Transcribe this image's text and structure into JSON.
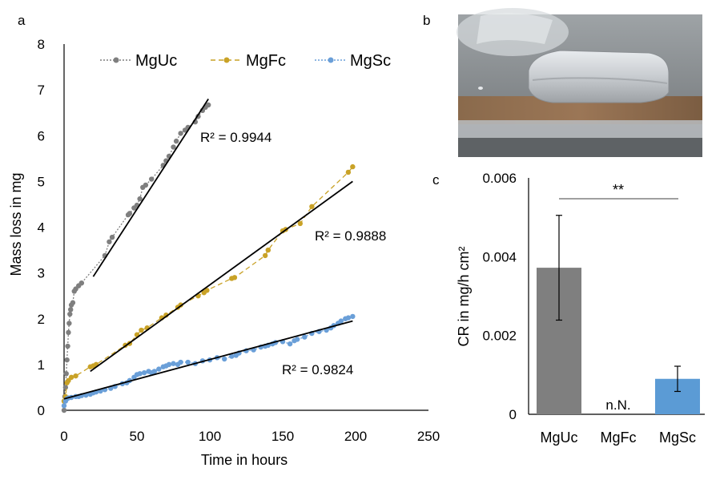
{
  "panels": {
    "a": "a",
    "b": "b",
    "c": "c"
  },
  "chart_data": [
    {
      "id": "a",
      "type": "scatter",
      "xlabel": "Time in hours",
      "ylabel": "Mass loss in mg",
      "xlim": [
        0,
        250
      ],
      "ylim": [
        0,
        8
      ],
      "xticks": [
        0,
        50,
        100,
        150,
        200,
        250
      ],
      "yticks": [
        0,
        1,
        2,
        3,
        4,
        5,
        6,
        7,
        8
      ],
      "grid": false,
      "legend_position": "top",
      "series": [
        {
          "name": "MgUc",
          "color": "#7f7f7f",
          "line_style": "dotted",
          "x": [
            0,
            0.5,
            1,
            1.5,
            2,
            2.5,
            3,
            3.5,
            4,
            4.5,
            5,
            6,
            7,
            8,
            10,
            12,
            28,
            31,
            33,
            44,
            45,
            48,
            50,
            52,
            54,
            56,
            60,
            68,
            70,
            72,
            75,
            77,
            80,
            83,
            85,
            90,
            92,
            95,
            97,
            99
          ],
          "y": [
            0.0,
            0.3,
            0.5,
            0.8,
            1.1,
            1.4,
            1.7,
            1.9,
            2.1,
            2.2,
            2.3,
            2.35,
            2.6,
            2.65,
            2.72,
            2.78,
            3.38,
            3.68,
            3.78,
            4.27,
            4.3,
            4.42,
            4.48,
            4.62,
            4.87,
            4.92,
            5.05,
            5.35,
            5.45,
            5.55,
            5.75,
            5.88,
            6.05,
            6.12,
            6.18,
            6.3,
            6.42,
            6.55,
            6.62,
            6.67
          ],
          "trend": {
            "x": [
              20,
              99
            ],
            "y": [
              2.92,
              6.8
            ]
          },
          "r2_label": "R² = 0.9944"
        },
        {
          "name": "MgFc",
          "color": "#c9a227",
          "line_style": "dashed",
          "x": [
            0,
            1,
            2,
            3,
            5,
            8,
            18,
            20,
            22,
            42,
            45,
            50,
            53,
            57,
            67,
            70,
            78,
            80,
            92,
            96,
            98,
            115,
            117,
            138,
            140,
            150,
            152,
            162,
            170,
            195,
            198
          ],
          "y": [
            0.2,
            0.3,
            0.6,
            0.65,
            0.72,
            0.75,
            0.95,
            0.97,
            1.0,
            1.42,
            1.46,
            1.65,
            1.75,
            1.8,
            2.02,
            2.08,
            2.25,
            2.3,
            2.5,
            2.57,
            2.62,
            2.88,
            2.9,
            3.38,
            3.5,
            3.92,
            3.95,
            4.08,
            4.45,
            5.2,
            5.32
          ],
          "trend": {
            "x": [
              18,
              198
            ],
            "y": [
              0.85,
              5.0
            ]
          },
          "r2_label": "R² = 0.9888"
        },
        {
          "name": "MgSc",
          "color": "#6a9fd8",
          "line_style": "dotted",
          "x": [
            0,
            1,
            2,
            3,
            5,
            8,
            10,
            12,
            15,
            18,
            20,
            22,
            25,
            28,
            32,
            35,
            40,
            43,
            45,
            48,
            50,
            52,
            55,
            58,
            60,
            62,
            65,
            68,
            70,
            72,
            75,
            78,
            80,
            85,
            90,
            95,
            100,
            105,
            110,
            115,
            118,
            120,
            125,
            130,
            135,
            138,
            140,
            143,
            145,
            150,
            155,
            158,
            160,
            165,
            170,
            175,
            180,
            183,
            185,
            188,
            190,
            193,
            195,
            198
          ],
          "y": [
            0.1,
            0.2,
            0.25,
            0.27,
            0.28,
            0.3,
            0.3,
            0.32,
            0.33,
            0.35,
            0.38,
            0.4,
            0.42,
            0.45,
            0.48,
            0.52,
            0.58,
            0.6,
            0.65,
            0.72,
            0.78,
            0.8,
            0.82,
            0.85,
            0.82,
            0.85,
            0.9,
            0.95,
            0.97,
            1.0,
            1.02,
            1.0,
            1.05,
            1.05,
            1.02,
            1.08,
            1.1,
            1.15,
            1.12,
            1.18,
            1.2,
            1.25,
            1.3,
            1.32,
            1.38,
            1.4,
            1.42,
            1.45,
            1.48,
            1.5,
            1.45,
            1.52,
            1.55,
            1.6,
            1.68,
            1.72,
            1.75,
            1.8,
            1.85,
            1.9,
            1.95,
            2.0,
            2.02,
            2.05
          ],
          "trend": {
            "x": [
              0,
              198
            ],
            "y": [
              0.25,
              1.95
            ]
          },
          "r2_label": "R² = 0.9824"
        }
      ]
    },
    {
      "id": "c",
      "type": "bar",
      "ylabel": "CR in mg/h cm²",
      "ylim": [
        0,
        0.006
      ],
      "yticks": [
        "0",
        "0.002",
        "0.004",
        "0.006"
      ],
      "ytick_values": [
        0,
        0.002,
        0.004,
        0.006
      ],
      "categories": [
        "MgUc",
        "MgFc",
        "MgSc"
      ],
      "values": [
        0.00372,
        0.0,
        0.0009
      ],
      "errors": [
        0.00133,
        0.0,
        0.00032
      ],
      "colors": [
        "#7f7f7f",
        "#c9a227",
        "#5b9bd5"
      ],
      "bar_labels": [
        "",
        "n.N.",
        ""
      ],
      "significance": {
        "from": "MgUc",
        "to": "MgSc",
        "label": "**"
      }
    }
  ]
}
